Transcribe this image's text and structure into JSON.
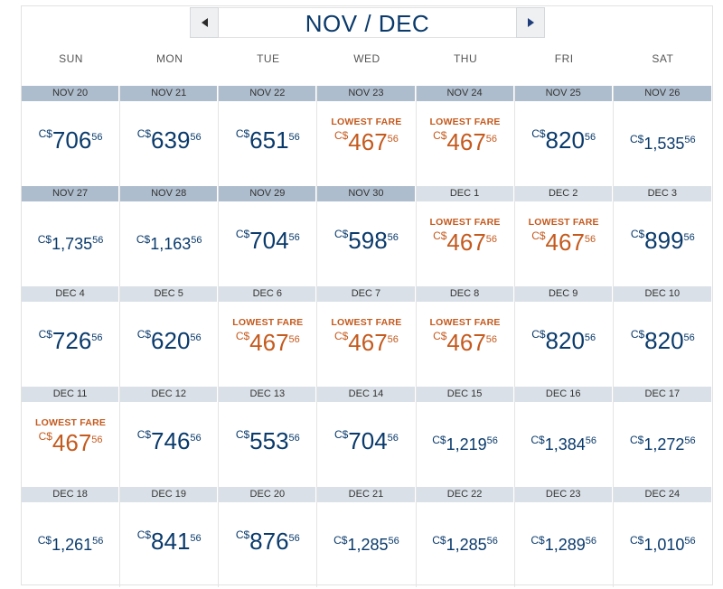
{
  "header": {
    "title": "NOV / DEC",
    "prev_icon": "triangle-left-icon",
    "next_icon": "triangle-right-icon"
  },
  "weekdays": [
    "SUN",
    "MON",
    "TUE",
    "WED",
    "THU",
    "FRI",
    "SAT"
  ],
  "colors": {
    "price": "#0a3a6b",
    "lowest": "#c45a1e",
    "current_month_header": "#aebdcd",
    "next_month_header": "#d9e0e7"
  },
  "lowest_label": "LOWEST FARE",
  "weeks": [
    [
      {
        "date": "NOV 20",
        "cur": "C$",
        "amount": "706",
        "cents": "56",
        "lowest": false,
        "current": true,
        "small": false
      },
      {
        "date": "NOV 21",
        "cur": "C$",
        "amount": "639",
        "cents": "56",
        "lowest": false,
        "current": true,
        "small": false
      },
      {
        "date": "NOV 22",
        "cur": "C$",
        "amount": "651",
        "cents": "56",
        "lowest": false,
        "current": true,
        "small": false
      },
      {
        "date": "NOV 23",
        "cur": "C$",
        "amount": "467",
        "cents": "56",
        "lowest": true,
        "current": true,
        "small": false
      },
      {
        "date": "NOV 24",
        "cur": "C$",
        "amount": "467",
        "cents": "56",
        "lowest": true,
        "current": true,
        "small": false
      },
      {
        "date": "NOV 25",
        "cur": "C$",
        "amount": "820",
        "cents": "56",
        "lowest": false,
        "current": true,
        "small": false
      },
      {
        "date": "NOV 26",
        "cur": "C$",
        "amount": "1,535",
        "cents": "56",
        "lowest": false,
        "current": true,
        "small": true
      }
    ],
    [
      {
        "date": "NOV 27",
        "cur": "C$",
        "amount": "1,735",
        "cents": "56",
        "lowest": false,
        "current": true,
        "small": true
      },
      {
        "date": "NOV 28",
        "cur": "C$",
        "amount": "1,163",
        "cents": "56",
        "lowest": false,
        "current": true,
        "small": true
      },
      {
        "date": "NOV 29",
        "cur": "C$",
        "amount": "704",
        "cents": "56",
        "lowest": false,
        "current": true,
        "small": false
      },
      {
        "date": "NOV 30",
        "cur": "C$",
        "amount": "598",
        "cents": "56",
        "lowest": false,
        "current": true,
        "small": false
      },
      {
        "date": "DEC 1",
        "cur": "C$",
        "amount": "467",
        "cents": "56",
        "lowest": true,
        "current": false,
        "small": false
      },
      {
        "date": "DEC 2",
        "cur": "C$",
        "amount": "467",
        "cents": "56",
        "lowest": true,
        "current": false,
        "small": false
      },
      {
        "date": "DEC 3",
        "cur": "C$",
        "amount": "899",
        "cents": "56",
        "lowest": false,
        "current": false,
        "small": false
      }
    ],
    [
      {
        "date": "DEC 4",
        "cur": "C$",
        "amount": "726",
        "cents": "56",
        "lowest": false,
        "current": false,
        "small": false
      },
      {
        "date": "DEC 5",
        "cur": "C$",
        "amount": "620",
        "cents": "56",
        "lowest": false,
        "current": false,
        "small": false
      },
      {
        "date": "DEC 6",
        "cur": "C$",
        "amount": "467",
        "cents": "56",
        "lowest": true,
        "current": false,
        "small": false
      },
      {
        "date": "DEC 7",
        "cur": "C$",
        "amount": "467",
        "cents": "56",
        "lowest": true,
        "current": false,
        "small": false
      },
      {
        "date": "DEC 8",
        "cur": "C$",
        "amount": "467",
        "cents": "56",
        "lowest": true,
        "current": false,
        "small": false
      },
      {
        "date": "DEC 9",
        "cur": "C$",
        "amount": "820",
        "cents": "56",
        "lowest": false,
        "current": false,
        "small": false
      },
      {
        "date": "DEC 10",
        "cur": "C$",
        "amount": "820",
        "cents": "56",
        "lowest": false,
        "current": false,
        "small": false
      }
    ],
    [
      {
        "date": "DEC 11",
        "cur": "C$",
        "amount": "467",
        "cents": "56",
        "lowest": true,
        "current": false,
        "small": false
      },
      {
        "date": "DEC 12",
        "cur": "C$",
        "amount": "746",
        "cents": "56",
        "lowest": false,
        "current": false,
        "small": false
      },
      {
        "date": "DEC 13",
        "cur": "C$",
        "amount": "553",
        "cents": "56",
        "lowest": false,
        "current": false,
        "small": false
      },
      {
        "date": "DEC 14",
        "cur": "C$",
        "amount": "704",
        "cents": "56",
        "lowest": false,
        "current": false,
        "small": false
      },
      {
        "date": "DEC 15",
        "cur": "C$",
        "amount": "1,219",
        "cents": "56",
        "lowest": false,
        "current": false,
        "small": true
      },
      {
        "date": "DEC 16",
        "cur": "C$",
        "amount": "1,384",
        "cents": "56",
        "lowest": false,
        "current": false,
        "small": true
      },
      {
        "date": "DEC 17",
        "cur": "C$",
        "amount": "1,272",
        "cents": "56",
        "lowest": false,
        "current": false,
        "small": true
      }
    ],
    [
      {
        "date": "DEC 18",
        "cur": "C$",
        "amount": "1,261",
        "cents": "56",
        "lowest": false,
        "current": false,
        "small": true
      },
      {
        "date": "DEC 19",
        "cur": "C$",
        "amount": "841",
        "cents": "56",
        "lowest": false,
        "current": false,
        "small": false
      },
      {
        "date": "DEC 20",
        "cur": "C$",
        "amount": "876",
        "cents": "56",
        "lowest": false,
        "current": false,
        "small": false
      },
      {
        "date": "DEC 21",
        "cur": "C$",
        "amount": "1,285",
        "cents": "56",
        "lowest": false,
        "current": false,
        "small": true
      },
      {
        "date": "DEC 22",
        "cur": "C$",
        "amount": "1,285",
        "cents": "56",
        "lowest": false,
        "current": false,
        "small": true
      },
      {
        "date": "DEC 23",
        "cur": "C$",
        "amount": "1,289",
        "cents": "56",
        "lowest": false,
        "current": false,
        "small": true
      },
      {
        "date": "DEC 24",
        "cur": "C$",
        "amount": "1,010",
        "cents": "56",
        "lowest": false,
        "current": false,
        "small": true
      }
    ]
  ]
}
